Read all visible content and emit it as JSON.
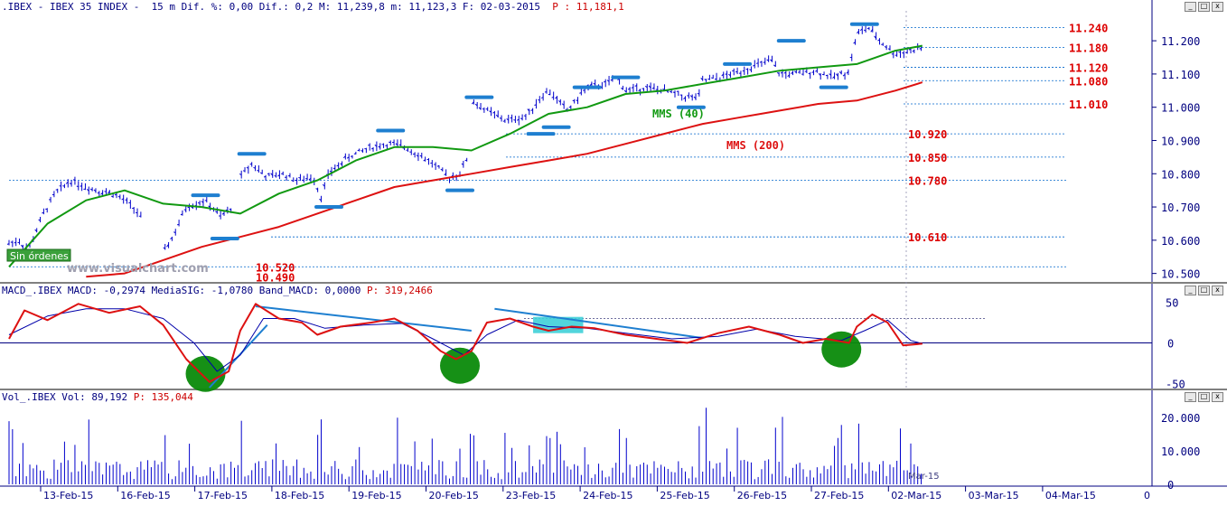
{
  "header": {
    "main": ".IBEX - IBEX 35 INDEX -  15 m Dif. %: 0,00 Dif.: 0,2 M: 11,239,8 m: 11,123,3 F: 02-03-2015",
    "main_price": "P : 11,181,1",
    "macd": "MACD_.IBEX MACD: -0,2974 MediaSIG: -1,0780 Band_MACD: 0,0000",
    "macd_price": "P: 319,2466",
    "vol": "Vol_.IBEX Vol: 89,192",
    "vol_price": "P: 135,044"
  },
  "window_buttons": [
    "_",
    "□",
    "x"
  ],
  "colors": {
    "candles": "#0000cc",
    "mms40": "#119911",
    "mms200": "#dd1111",
    "level_blue": "#0066cc",
    "level_red": "#dd0000",
    "macd_line": "#dd1111",
    "macd_signal": "#0000aa",
    "trendline": "#1e7fd0",
    "highlight": "#3fd0d8",
    "circle": "#0a8a0a",
    "axis_text": "#000080",
    "watermark": "#a0a0b0"
  },
  "annotations": {
    "mms40": "MMS (40)",
    "mms200": "MMS (200)",
    "sin_ordenes": "Sin órdenes",
    "watermark": "www.visualchart.com",
    "mar15": "Mar-15"
  },
  "chart_data": [
    {
      "type": "candlestick",
      "title": "IBEX 35 INDEX 15 m",
      "x": [
        "13-Feb-15",
        "16-Feb-15",
        "17-Feb-15",
        "18-Feb-15",
        "19-Feb-15",
        "20-Feb-15",
        "23-Feb-15",
        "24-Feb-15",
        "25-Feb-15",
        "26-Feb-15",
        "27-Feb-15",
        "02-Mar-15",
        "03-Mar-15",
        "04-Mar-15"
      ],
      "ylim": [
        10480,
        11290
      ],
      "yticks": [
        "11.200",
        "11.100",
        "11.000",
        "10.900",
        "10.800",
        "10.700",
        "10.600",
        "10.500"
      ],
      "price_path": [
        [
          0,
          10590
        ],
        [
          0.12,
          10600
        ],
        [
          0.25,
          10570
        ],
        [
          0.45,
          10680
        ],
        [
          0.6,
          10740
        ],
        [
          0.8,
          10780
        ],
        [
          1.0,
          10760
        ],
        [
          1.15,
          10750
        ],
        [
          1.35,
          10740
        ],
        [
          1.5,
          10720
        ],
        [
          1.65,
          10690
        ],
        [
          2.0,
          10560
        ],
        [
          2.15,
          10620
        ],
        [
          2.3,
          10700
        ],
        [
          2.55,
          10720
        ],
        [
          2.75,
          10670
        ],
        [
          2.9,
          10700
        ],
        [
          3.0,
          10790
        ],
        [
          3.15,
          10830
        ],
        [
          3.35,
          10790
        ],
        [
          3.55,
          10800
        ],
        [
          3.75,
          10780
        ],
        [
          3.95,
          10790
        ],
        [
          4.05,
          10730
        ],
        [
          4.15,
          10800
        ],
        [
          4.4,
          10850
        ],
        [
          4.7,
          10880
        ],
        [
          4.95,
          10890
        ],
        [
          5.15,
          10880
        ],
        [
          5.3,
          10860
        ],
        [
          5.5,
          10830
        ],
        [
          5.7,
          10790
        ],
        [
          5.85,
          10800
        ],
        [
          5.95,
          10850
        ],
        [
          6.0,
          11020
        ],
        [
          6.2,
          10990
        ],
        [
          6.45,
          10960
        ],
        [
          6.7,
          10970
        ],
        [
          6.9,
          11030
        ],
        [
          7.0,
          11050
        ],
        [
          7.25,
          10990
        ],
        [
          7.5,
          11060
        ],
        [
          7.75,
          11070
        ],
        [
          7.9,
          11090
        ],
        [
          8.0,
          11050
        ],
        [
          8.25,
          11060
        ],
        [
          8.5,
          11050
        ],
        [
          8.8,
          11030
        ],
        [
          8.95,
          11030
        ],
        [
          9.0,
          11080
        ],
        [
          9.25,
          11090
        ],
        [
          9.5,
          11110
        ],
        [
          9.75,
          11130
        ],
        [
          9.9,
          11140
        ],
        [
          10.0,
          11100
        ],
        [
          10.2,
          11100
        ],
        [
          10.45,
          11110
        ],
        [
          10.7,
          11090
        ],
        [
          10.9,
          11110
        ],
        [
          11.0,
          11220
        ],
        [
          11.15,
          11240
        ],
        [
          11.3,
          11200
        ],
        [
          11.5,
          11160
        ],
        [
          11.7,
          11170
        ],
        [
          11.85,
          11180
        ]
      ],
      "mms40": [
        [
          0,
          10520
        ],
        [
          0.5,
          10650
        ],
        [
          1.0,
          10720
        ],
        [
          1.5,
          10750
        ],
        [
          2.0,
          10710
        ],
        [
          2.5,
          10700
        ],
        [
          3.0,
          10680
        ],
        [
          3.5,
          10740
        ],
        [
          4.0,
          10780
        ],
        [
          4.5,
          10840
        ],
        [
          5.0,
          10880
        ],
        [
          5.5,
          10880
        ],
        [
          6.0,
          10870
        ],
        [
          6.5,
          10920
        ],
        [
          7.0,
          10980
        ],
        [
          7.5,
          11000
        ],
        [
          8.0,
          11040
        ],
        [
          8.5,
          11050
        ],
        [
          9.0,
          11070
        ],
        [
          9.5,
          11090
        ],
        [
          10.0,
          11110
        ],
        [
          10.5,
          11120
        ],
        [
          11.0,
          11130
        ],
        [
          11.5,
          11170
        ],
        [
          11.85,
          11185
        ]
      ],
      "mms200": [
        [
          1.0,
          10490
        ],
        [
          1.5,
          10500
        ],
        [
          2.0,
          10540
        ],
        [
          2.5,
          10580
        ],
        [
          3.0,
          10610
        ],
        [
          3.5,
          10640
        ],
        [
          4.0,
          10680
        ],
        [
          4.5,
          10720
        ],
        [
          5.0,
          10760
        ],
        [
          5.5,
          10780
        ],
        [
          6.0,
          10800
        ],
        [
          6.5,
          10820
        ],
        [
          7.0,
          10840
        ],
        [
          7.5,
          10860
        ],
        [
          8.0,
          10890
        ],
        [
          8.5,
          10920
        ],
        [
          9.0,
          10950
        ],
        [
          9.5,
          10970
        ],
        [
          10.0,
          10990
        ],
        [
          10.5,
          11010
        ],
        [
          11.0,
          11020
        ],
        [
          11.5,
          11050
        ],
        [
          11.85,
          11075
        ]
      ],
      "levels_blue": [
        11240,
        11180,
        11120,
        11080,
        11010,
        10920,
        10850,
        10780,
        10610,
        10520
      ],
      "levels_red_labels": [
        {
          "v": 11240,
          "label": "11.240"
        },
        {
          "v": 11180,
          "label": "11.180"
        },
        {
          "v": 11120,
          "label": "11.120"
        },
        {
          "v": 11080,
          "label": "11.080"
        },
        {
          "v": 11010,
          "label": "11.010"
        },
        {
          "v": 10920,
          "label": "10.920"
        },
        {
          "v": 10850,
          "label": "10.850"
        },
        {
          "v": 10780,
          "label": "10.780"
        },
        {
          "v": 10610,
          "label": "10.610"
        },
        {
          "v": 10520,
          "label": "10.520"
        },
        {
          "v": 10490,
          "label": "10.490"
        }
      ],
      "swing_markers": [
        [
          2.55,
          10735
        ],
        [
          2.8,
          10605
        ],
        [
          3.15,
          10860
        ],
        [
          4.15,
          10700
        ],
        [
          4.95,
          10930
        ],
        [
          5.85,
          10750
        ],
        [
          6.1,
          11030
        ],
        [
          6.9,
          10920
        ],
        [
          7.5,
          11060
        ],
        [
          7.1,
          10940
        ],
        [
          8.0,
          11090
        ],
        [
          8.85,
          11000
        ],
        [
          9.45,
          11130
        ],
        [
          10.15,
          11200
        ],
        [
          10.7,
          11060
        ],
        [
          11.1,
          11250
        ]
      ]
    },
    {
      "type": "line",
      "title": "MACD",
      "ylim": [
        -55,
        55
      ],
      "yticks": [
        "50",
        "0",
        "-50"
      ],
      "macd": [
        [
          0,
          5
        ],
        [
          0.2,
          40
        ],
        [
          0.5,
          28
        ],
        [
          0.9,
          48
        ],
        [
          1.3,
          37
        ],
        [
          1.7,
          45
        ],
        [
          2.0,
          22
        ],
        [
          2.3,
          -20
        ],
        [
          2.6,
          -48
        ],
        [
          2.85,
          -35
        ],
        [
          3.0,
          15
        ],
        [
          3.2,
          48
        ],
        [
          3.5,
          30
        ],
        [
          3.8,
          25
        ],
        [
          4.0,
          10
        ],
        [
          4.3,
          20
        ],
        [
          4.7,
          25
        ],
        [
          5.0,
          30
        ],
        [
          5.3,
          15
        ],
        [
          5.6,
          -10
        ],
        [
          5.8,
          -20
        ],
        [
          6.0,
          -10
        ],
        [
          6.2,
          25
        ],
        [
          6.5,
          30
        ],
        [
          6.8,
          20
        ],
        [
          7.0,
          15
        ],
        [
          7.3,
          20
        ],
        [
          7.6,
          18
        ],
        [
          8.0,
          10
        ],
        [
          8.4,
          5
        ],
        [
          8.8,
          0
        ],
        [
          9.2,
          12
        ],
        [
          9.6,
          20
        ],
        [
          10.0,
          10
        ],
        [
          10.3,
          0
        ],
        [
          10.6,
          5
        ],
        [
          10.9,
          0
        ],
        [
          11.0,
          20
        ],
        [
          11.2,
          35
        ],
        [
          11.4,
          25
        ],
        [
          11.6,
          -3
        ],
        [
          11.85,
          -1
        ]
      ],
      "signal": [
        [
          0,
          10
        ],
        [
          0.5,
          33
        ],
        [
          1.0,
          42
        ],
        [
          1.5,
          42
        ],
        [
          2.0,
          30
        ],
        [
          2.4,
          0
        ],
        [
          2.7,
          -35
        ],
        [
          3.0,
          -15
        ],
        [
          3.3,
          30
        ],
        [
          3.7,
          30
        ],
        [
          4.1,
          18
        ],
        [
          4.6,
          22
        ],
        [
          5.1,
          24
        ],
        [
          5.5,
          5
        ],
        [
          5.9,
          -15
        ],
        [
          6.2,
          10
        ],
        [
          6.6,
          28
        ],
        [
          7.0,
          20
        ],
        [
          7.5,
          18
        ],
        [
          8.0,
          12
        ],
        [
          8.6,
          5
        ],
        [
          9.2,
          8
        ],
        [
          9.7,
          17
        ],
        [
          10.2,
          8
        ],
        [
          10.8,
          3
        ],
        [
          11.1,
          15
        ],
        [
          11.4,
          28
        ],
        [
          11.7,
          3
        ],
        [
          11.85,
          -1
        ]
      ],
      "trendlines": [
        [
          [
            2.6,
            -55
          ],
          [
            3.35,
            22
          ]
        ],
        [
          [
            3.2,
            45
          ],
          [
            6.0,
            15
          ]
        ],
        [
          [
            6.3,
            42
          ],
          [
            9.0,
            6
          ]
        ]
      ],
      "circles": [
        [
          2.55,
          -38
        ],
        [
          5.85,
          -28
        ],
        [
          10.8,
          -8
        ]
      ],
      "highlight_range": [
        [
          6.8,
          7.45
        ],
        [
          12,
          32
        ]
      ]
    },
    {
      "type": "bar",
      "title": "Volume",
      "ylim": [
        0,
        24000
      ],
      "yticks": [
        "20.000",
        "10.000",
        "0"
      ]
    }
  ]
}
